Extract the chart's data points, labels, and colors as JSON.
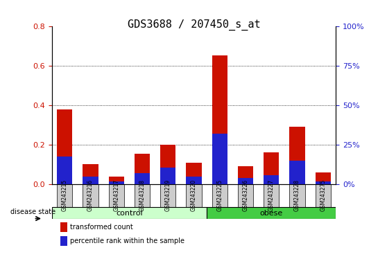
{
  "title": "GDS3688 / 207450_s_at",
  "samples": [
    "GSM243215",
    "GSM243216",
    "GSM243217",
    "GSM243218",
    "GSM243219",
    "GSM243220",
    "GSM243225",
    "GSM243226",
    "GSM243227",
    "GSM243228",
    "GSM243275"
  ],
  "red_values": [
    0.38,
    0.1,
    0.04,
    0.155,
    0.2,
    0.11,
    0.655,
    0.09,
    0.16,
    0.29,
    0.06
  ],
  "blue_values": [
    0.14,
    0.04,
    0.013,
    0.055,
    0.085,
    0.04,
    0.255,
    0.03,
    0.045,
    0.12,
    0.012
  ],
  "ylim_left": [
    0,
    0.8
  ],
  "ylim_right": [
    0,
    100
  ],
  "yticks_left": [
    0,
    0.2,
    0.4,
    0.6,
    0.8
  ],
  "yticks_right": [
    0,
    25,
    50,
    75,
    100
  ],
  "ytick_labels_right": [
    "0%",
    "25%",
    "50%",
    "75%",
    "100%"
  ],
  "control_group": [
    "GSM243215",
    "GSM243216",
    "GSM243217",
    "GSM243218",
    "GSM243219",
    "GSM243220"
  ],
  "obese_group": [
    "GSM243225",
    "GSM243226",
    "GSM243227",
    "GSM243228",
    "GSM243275"
  ],
  "control_label": "control",
  "obese_label": "obese",
  "disease_label": "disease state",
  "legend_red": "transformed count",
  "legend_blue": "percentile rank within the sample",
  "bar_width": 0.6,
  "red_color": "#cc1100",
  "blue_color": "#2222cc",
  "control_bg": "#ccffcc",
  "obese_bg": "#44cc44",
  "tick_label_bg": "#cccccc",
  "grid_color": "black",
  "title_fontsize": 11,
  "axis_fontsize": 8,
  "tick_label_fontsize": 8
}
